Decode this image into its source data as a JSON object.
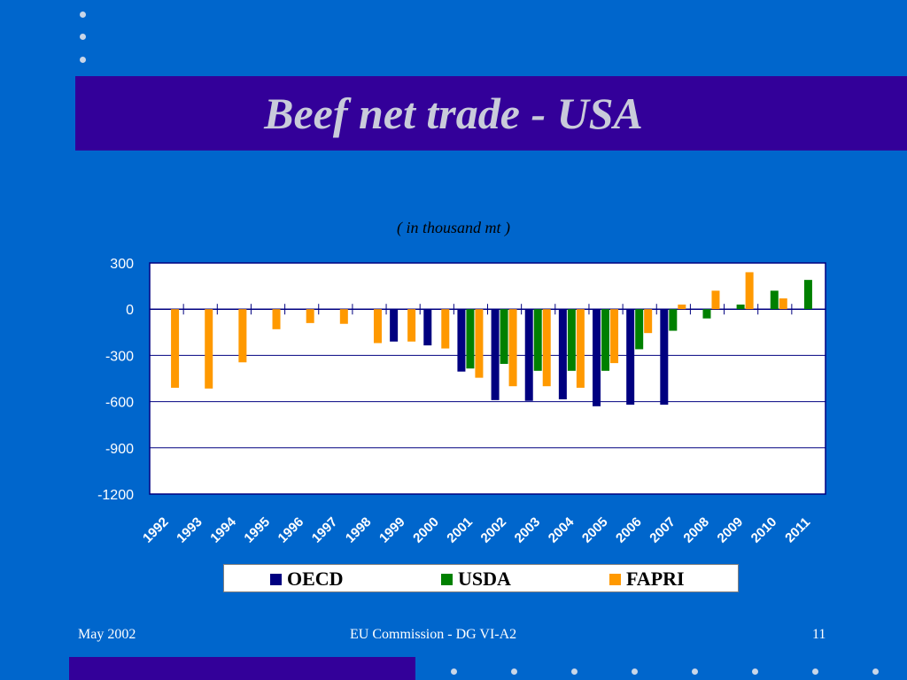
{
  "slide": {
    "title": "Beef net trade - USA",
    "footer_left": "May 2002",
    "footer_center": "EU Commission - DG VI-A2",
    "footer_right": "11"
  },
  "colors": {
    "background": "#0066CC",
    "title_band": "#330099",
    "oecd": "#000080",
    "usda": "#008000",
    "fapri": "#FF9900"
  },
  "chart_data": {
    "type": "bar",
    "title": "",
    "subtitle": "( in thousand mt )",
    "xlabel": "",
    "ylabel": "",
    "ylim": [
      -1200,
      300
    ],
    "yticks": [
      300,
      0,
      -300,
      -600,
      -900,
      -1200
    ],
    "grid": true,
    "legend_position": "bottom",
    "categories": [
      "1992",
      "1993",
      "1994",
      "1995",
      "1996",
      "1997",
      "1998",
      "1999",
      "2000",
      "2001",
      "2002",
      "2003",
      "2004",
      "2005",
      "2006",
      "2007",
      "2008",
      "2009",
      "2010",
      "2011"
    ],
    "series": [
      {
        "name": "OECD",
        "color": "#000080",
        "values": [
          null,
          null,
          null,
          null,
          null,
          null,
          null,
          -210,
          -235,
          -405,
          -590,
          -595,
          -585,
          -630,
          -620,
          -620,
          null,
          null,
          null,
          null
        ]
      },
      {
        "name": "USDA",
        "color": "#008000",
        "values": [
          null,
          null,
          null,
          null,
          null,
          null,
          null,
          null,
          null,
          -385,
          -355,
          -400,
          -400,
          -400,
          -260,
          -140,
          -60,
          30,
          120,
          190
        ]
      },
      {
        "name": "FAPRI",
        "color": "#FF9900",
        "values": [
          -510,
          -515,
          -345,
          -130,
          -90,
          -95,
          -220,
          -210,
          -255,
          -445,
          -500,
          -500,
          -510,
          -350,
          -155,
          30,
          120,
          240,
          70,
          null
        ]
      }
    ]
  }
}
